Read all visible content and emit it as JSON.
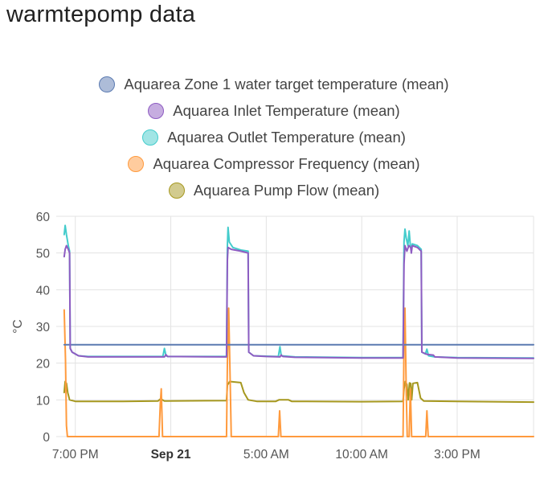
{
  "card": {
    "title": "warmtepomp data"
  },
  "chart_data": {
    "type": "line",
    "ylabel": "°C",
    "ylim": [
      0,
      60
    ],
    "yticks": [
      "60",
      "50",
      "40",
      "30",
      "20",
      "10",
      "0"
    ],
    "x_start": "2023-09-20 18:00",
    "x_end": "2023-09-21 19:00",
    "x_ticks": [
      {
        "label": "7:00 PM",
        "time": "2023-09-20 19:00",
        "bold": false
      },
      {
        "label": "Sep 21",
        "time": "2023-09-21 00:00",
        "bold": true
      },
      {
        "label": "5:00 AM",
        "time": "2023-09-21 05:00",
        "bold": false
      },
      {
        "label": "10:00 AM",
        "time": "2023-09-21 10:00",
        "bold": false
      },
      {
        "label": "3:00 PM",
        "time": "2023-09-21 15:00",
        "bold": false
      }
    ],
    "grid": true,
    "legend_position": "top",
    "series": [
      {
        "name": "Aquarea Zone 1 water target temperature (mean)",
        "color": "#5b7ab1",
        "points": [
          [
            "2023-09-20 18:25",
            25
          ],
          [
            "2023-09-21 19:00",
            25
          ]
        ]
      },
      {
        "name": "Aquarea Inlet Temperature (mean)",
        "color": "#8e5cc2",
        "points": [
          [
            "2023-09-20 18:25",
            49
          ],
          [
            "2023-09-20 18:28",
            51
          ],
          [
            "2023-09-20 18:32",
            52
          ],
          [
            "2023-09-20 18:38",
            51
          ],
          [
            "2023-09-20 18:42",
            50
          ],
          [
            "2023-09-20 18:44",
            24
          ],
          [
            "2023-09-20 18:50",
            23
          ],
          [
            "2023-09-20 19:10",
            22
          ],
          [
            "2023-09-20 19:40",
            21.7
          ],
          [
            "2023-09-20 23:40",
            21.7
          ],
          [
            "2023-09-20 23:45",
            22.3
          ],
          [
            "2023-09-20 23:50",
            21.8
          ],
          [
            "2023-09-21 02:55",
            21.7
          ],
          [
            "2023-09-21 02:58",
            48
          ],
          [
            "2023-09-21 03:00",
            51.5
          ],
          [
            "2023-09-21 03:10",
            51
          ],
          [
            "2023-09-21 03:40",
            50.5
          ],
          [
            "2023-09-21 04:03",
            50
          ],
          [
            "2023-09-21 04:05",
            23
          ],
          [
            "2023-09-21 04:20",
            22
          ],
          [
            "2023-09-21 05:00",
            21.8
          ],
          [
            "2023-09-21 05:43",
            21.7
          ],
          [
            "2023-09-21 05:47",
            22.2
          ],
          [
            "2023-09-21 05:52",
            21.8
          ],
          [
            "2023-09-21 06:30",
            21.6
          ],
          [
            "2023-09-21 10:00",
            21.4
          ],
          [
            "2023-09-21 12:10",
            21.4
          ],
          [
            "2023-09-21 12:13",
            47
          ],
          [
            "2023-09-21 12:16",
            52
          ],
          [
            "2023-09-21 12:22",
            50.5
          ],
          [
            "2023-09-21 12:28",
            52
          ],
          [
            "2023-09-21 12:34",
            51.5
          ],
          [
            "2023-09-21 12:36",
            50
          ],
          [
            "2023-09-21 12:39",
            52
          ],
          [
            "2023-09-21 12:55",
            51.5
          ],
          [
            "2023-09-21 13:07",
            50.5
          ],
          [
            "2023-09-21 13:09",
            23
          ],
          [
            "2023-09-21 13:25",
            22.4
          ],
          [
            "2023-09-21 13:45",
            22.2
          ],
          [
            "2023-09-21 13:50",
            21.7
          ],
          [
            "2023-09-21 15:00",
            21.4
          ],
          [
            "2023-09-21 19:00",
            21.3
          ]
        ]
      },
      {
        "name": "Aquarea Outlet Temperature (mean)",
        "color": "#44cccc",
        "points": [
          [
            "2023-09-20 18:25",
            55
          ],
          [
            "2023-09-20 18:28",
            57.5
          ],
          [
            "2023-09-20 18:32",
            55
          ],
          [
            "2023-09-20 18:38",
            52
          ],
          [
            "2023-09-20 18:42",
            50.5
          ],
          [
            "2023-09-20 18:44",
            24
          ],
          [
            "2023-09-20 18:50",
            23
          ],
          [
            "2023-09-20 19:10",
            22
          ],
          [
            "2023-09-20 19:40",
            21.8
          ],
          [
            "2023-09-20 23:35",
            21.8
          ],
          [
            "2023-09-20 23:40",
            24
          ],
          [
            "2023-09-20 23:45",
            22
          ],
          [
            "2023-09-20 23:50",
            21.8
          ],
          [
            "2023-09-21 02:55",
            21.8
          ],
          [
            "2023-09-21 02:58",
            52
          ],
          [
            "2023-09-21 03:00",
            57
          ],
          [
            "2023-09-21 03:04",
            53
          ],
          [
            "2023-09-21 03:15",
            51.5
          ],
          [
            "2023-09-21 03:40",
            50.8
          ],
          [
            "2023-09-21 04:03",
            50.5
          ],
          [
            "2023-09-21 04:05",
            23
          ],
          [
            "2023-09-21 04:20",
            22
          ],
          [
            "2023-09-21 05:00",
            21.9
          ],
          [
            "2023-09-21 05:38",
            21.8
          ],
          [
            "2023-09-21 05:43",
            24.5
          ],
          [
            "2023-09-21 05:47",
            22
          ],
          [
            "2023-09-21 06:30",
            21.7
          ],
          [
            "2023-09-21 10:00",
            21.5
          ],
          [
            "2023-09-21 12:10",
            21.5
          ],
          [
            "2023-09-21 12:13",
            53
          ],
          [
            "2023-09-21 12:16",
            56.5
          ],
          [
            "2023-09-21 12:20",
            54
          ],
          [
            "2023-09-21 12:25",
            52
          ],
          [
            "2023-09-21 12:29",
            56
          ],
          [
            "2023-09-21 12:33",
            52
          ],
          [
            "2023-09-21 12:36",
            51
          ],
          [
            "2023-09-21 12:39",
            52.5
          ],
          [
            "2023-09-21 12:55",
            52
          ],
          [
            "2023-09-21 13:07",
            51
          ],
          [
            "2023-09-21 13:09",
            23
          ],
          [
            "2023-09-21 13:20",
            22.5
          ],
          [
            "2023-09-21 13:25",
            23.8
          ],
          [
            "2023-09-21 13:30",
            22
          ],
          [
            "2023-09-21 13:50",
            21.7
          ],
          [
            "2023-09-21 15:00",
            21.5
          ],
          [
            "2023-09-21 19:00",
            21.4
          ]
        ]
      },
      {
        "name": "Aquarea Compressor Frequency (mean)",
        "color": "#ff9a3d",
        "points": [
          [
            "2023-09-20 18:25",
            34.5
          ],
          [
            "2023-09-20 18:29",
            21
          ],
          [
            "2023-09-20 18:32",
            3
          ],
          [
            "2023-09-20 18:35",
            0
          ],
          [
            "2023-09-20 23:23",
            0
          ],
          [
            "2023-09-20 23:27",
            9
          ],
          [
            "2023-09-20 23:30",
            13
          ],
          [
            "2023-09-20 23:34",
            0
          ],
          [
            "2023-09-21 02:55",
            0
          ],
          [
            "2023-09-21 02:58",
            20
          ],
          [
            "2023-09-21 03:02",
            35
          ],
          [
            "2023-09-21 03:06",
            18
          ],
          [
            "2023-09-21 03:10",
            0
          ],
          [
            "2023-09-21 05:38",
            0
          ],
          [
            "2023-09-21 05:42",
            7
          ],
          [
            "2023-09-21 05:46",
            0
          ],
          [
            "2023-09-21 12:10",
            0
          ],
          [
            "2023-09-21 12:13",
            25
          ],
          [
            "2023-09-21 12:16",
            35
          ],
          [
            "2023-09-21 12:20",
            12
          ],
          [
            "2023-09-21 12:23",
            0
          ],
          [
            "2023-09-21 12:29",
            0
          ],
          [
            "2023-09-21 12:33",
            13
          ],
          [
            "2023-09-21 12:37",
            0
          ],
          [
            "2023-09-21 13:21",
            0
          ],
          [
            "2023-09-21 13:25",
            7
          ],
          [
            "2023-09-21 13:29",
            0
          ],
          [
            "2023-09-21 19:00",
            0
          ]
        ]
      },
      {
        "name": "Aquarea Pump Flow (mean)",
        "color": "#a6981f",
        "points": [
          [
            "2023-09-20 18:25",
            12
          ],
          [
            "2023-09-20 18:28",
            15
          ],
          [
            "2023-09-20 18:32",
            14.5
          ],
          [
            "2023-09-20 18:36",
            12
          ],
          [
            "2023-09-20 18:42",
            10
          ],
          [
            "2023-09-20 19:00",
            9.6
          ],
          [
            "2023-09-20 21:30",
            9.6
          ],
          [
            "2023-09-20 23:20",
            9.7
          ],
          [
            "2023-09-20 23:28",
            10.3
          ],
          [
            "2023-09-20 23:40",
            9.7
          ],
          [
            "2023-09-21 02:55",
            9.8
          ],
          [
            "2023-09-21 02:58",
            14
          ],
          [
            "2023-09-21 03:05",
            15
          ],
          [
            "2023-09-21 03:40",
            14.7
          ],
          [
            "2023-09-21 03:50",
            12
          ],
          [
            "2023-09-21 04:03",
            10
          ],
          [
            "2023-09-21 04:30",
            9.6
          ],
          [
            "2023-09-21 05:30",
            9.6
          ],
          [
            "2023-09-21 05:40",
            10
          ],
          [
            "2023-09-21 06:10",
            10
          ],
          [
            "2023-09-21 06:20",
            9.6
          ],
          [
            "2023-09-21 10:00",
            9.5
          ],
          [
            "2023-09-21 12:10",
            9.6
          ],
          [
            "2023-09-21 12:13",
            13
          ],
          [
            "2023-09-21 12:17",
            15
          ],
          [
            "2023-09-21 12:22",
            14.2
          ],
          [
            "2023-09-21 12:26",
            10
          ],
          [
            "2023-09-21 12:30",
            14.6
          ],
          [
            "2023-09-21 12:34",
            14.5
          ],
          [
            "2023-09-21 12:37",
            10
          ],
          [
            "2023-09-21 12:41",
            14.5
          ],
          [
            "2023-09-21 12:55",
            14.7
          ],
          [
            "2023-09-21 13:05",
            10.5
          ],
          [
            "2023-09-21 13:15",
            9.7
          ],
          [
            "2023-09-21 15:00",
            9.6
          ],
          [
            "2023-09-21 19:00",
            9.4
          ]
        ]
      }
    ]
  }
}
